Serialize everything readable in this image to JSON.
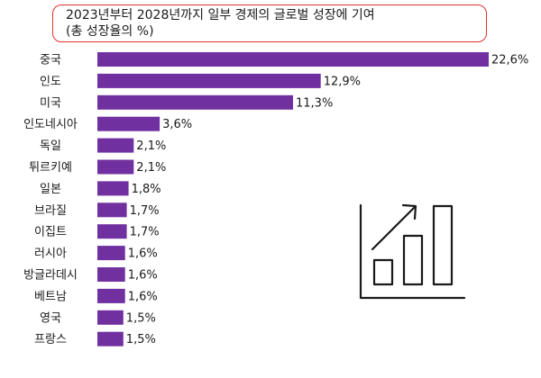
{
  "chart_data": {
    "type": "bar",
    "orientation": "horizontal",
    "title": "2023년부터 2028년까지 일부 경제의 글로벌 성장에 기여",
    "subtitle": "(총 성장율의 %)",
    "categories": [
      "중국",
      "인도",
      "미국",
      "인도네시아",
      "독일",
      "튀르키예",
      "일본",
      "브라질",
      "이집트",
      "러시아",
      "방글라데시",
      "베트남",
      "영국",
      "프랑스"
    ],
    "values": [
      22.6,
      12.9,
      11.3,
      3.6,
      2.1,
      2.1,
      1.8,
      1.7,
      1.7,
      1.6,
      1.6,
      1.6,
      1.5,
      1.5
    ],
    "value_labels": [
      "22,6%",
      "12,9%",
      "11,3%",
      "3,6%",
      "2,1%",
      "2,1%",
      "1,8%",
      "1,7%",
      "1,7%",
      "1,6%",
      "1,6%",
      "1,6%",
      "1,5%",
      "1,5%"
    ],
    "bar_color": "#7030a0",
    "grid": false,
    "legend": "none"
  },
  "decor": {
    "icon": "growth-chart-icon",
    "stroke_color": "#1a1a1a",
    "title_border_color": "#e0322e"
  }
}
